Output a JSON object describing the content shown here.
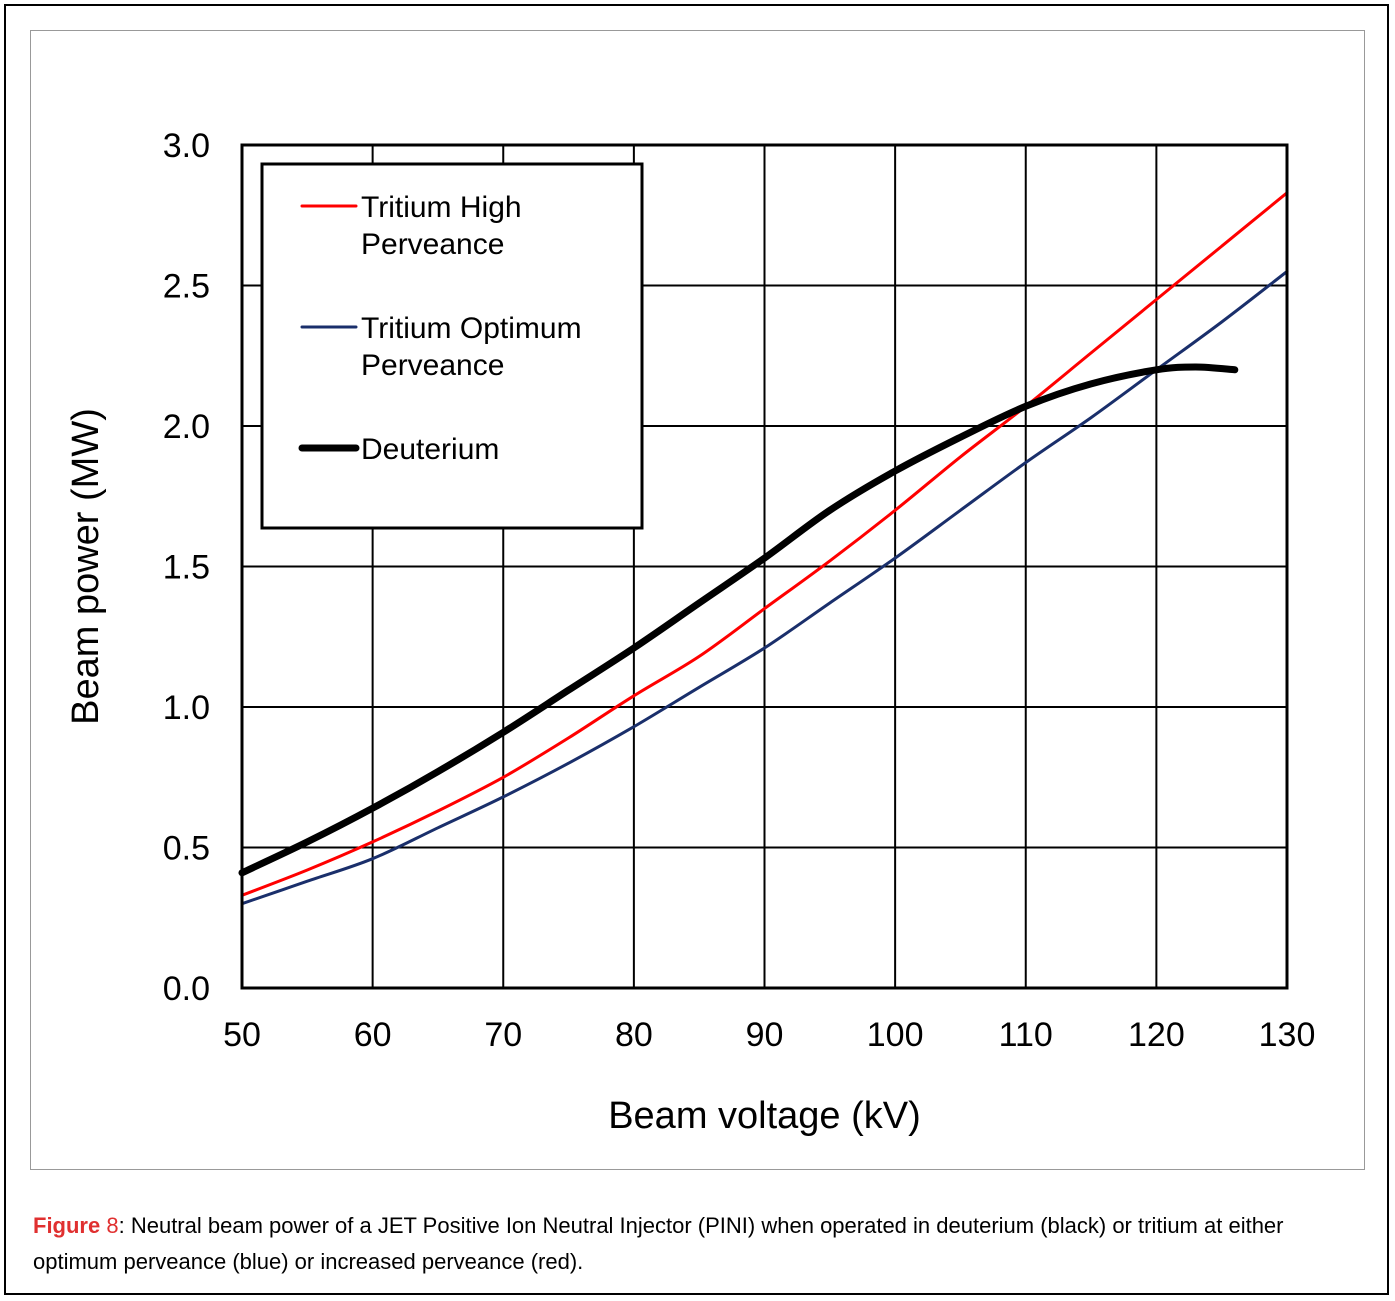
{
  "caption": {
    "label": "Figure",
    "number": "8",
    "text": ": Neutral beam power of a JET Positive Ion Neutral Injector (PINI) when operated in deuterium (black) or tritium at either optimum perveance (blue) or increased perveance (red)."
  },
  "chart_data": {
    "type": "line",
    "title": "",
    "xlabel": "Beam voltage (kV)",
    "ylabel": "Beam power (MW)",
    "xlim": [
      50,
      130
    ],
    "ylim": [
      0.0,
      3.0
    ],
    "xticks": [
      "50",
      "60",
      "70",
      "80",
      "90",
      "100",
      "110",
      "120",
      "130"
    ],
    "yticks": [
      "0.0",
      "0.5",
      "1.0",
      "1.5",
      "2.0",
      "2.5",
      "3.0"
    ],
    "grid": true,
    "legend_position": "top-left",
    "series": [
      {
        "name": "Tritium High Perveance",
        "legend_lines": [
          "Tritium High",
          "Perveance"
        ],
        "color": "#ff0000",
        "width": "thin",
        "x": [
          50,
          55,
          60,
          65,
          70,
          75,
          80,
          85,
          90,
          95,
          100,
          105,
          110,
          115,
          120,
          125,
          130
        ],
        "y": [
          0.33,
          0.42,
          0.52,
          0.63,
          0.75,
          0.89,
          1.04,
          1.18,
          1.35,
          1.52,
          1.7,
          1.89,
          2.07,
          2.26,
          2.45,
          2.64,
          2.83
        ]
      },
      {
        "name": "Tritium Optimum Perveance",
        "legend_lines": [
          "Tritium Optimum",
          "Perveance"
        ],
        "color": "#1a2f6b",
        "width": "thin",
        "x": [
          50,
          55,
          60,
          65,
          70,
          75,
          80,
          85,
          90,
          95,
          100,
          105,
          110,
          115,
          120,
          125,
          130
        ],
        "y": [
          0.3,
          0.38,
          0.46,
          0.57,
          0.68,
          0.8,
          0.93,
          1.07,
          1.21,
          1.37,
          1.53,
          1.7,
          1.87,
          2.03,
          2.2,
          2.37,
          2.55
        ]
      },
      {
        "name": "Deuterium",
        "legend_lines": [
          "Deuterium"
        ],
        "color": "#000000",
        "width": "thick",
        "x": [
          50,
          55,
          60,
          65,
          70,
          75,
          80,
          85,
          90,
          95,
          100,
          105,
          110,
          115,
          120,
          123,
          126
        ],
        "y": [
          0.41,
          0.52,
          0.64,
          0.77,
          0.91,
          1.06,
          1.21,
          1.37,
          1.53,
          1.7,
          1.84,
          1.96,
          2.07,
          2.15,
          2.2,
          2.21,
          2.2
        ]
      }
    ]
  }
}
